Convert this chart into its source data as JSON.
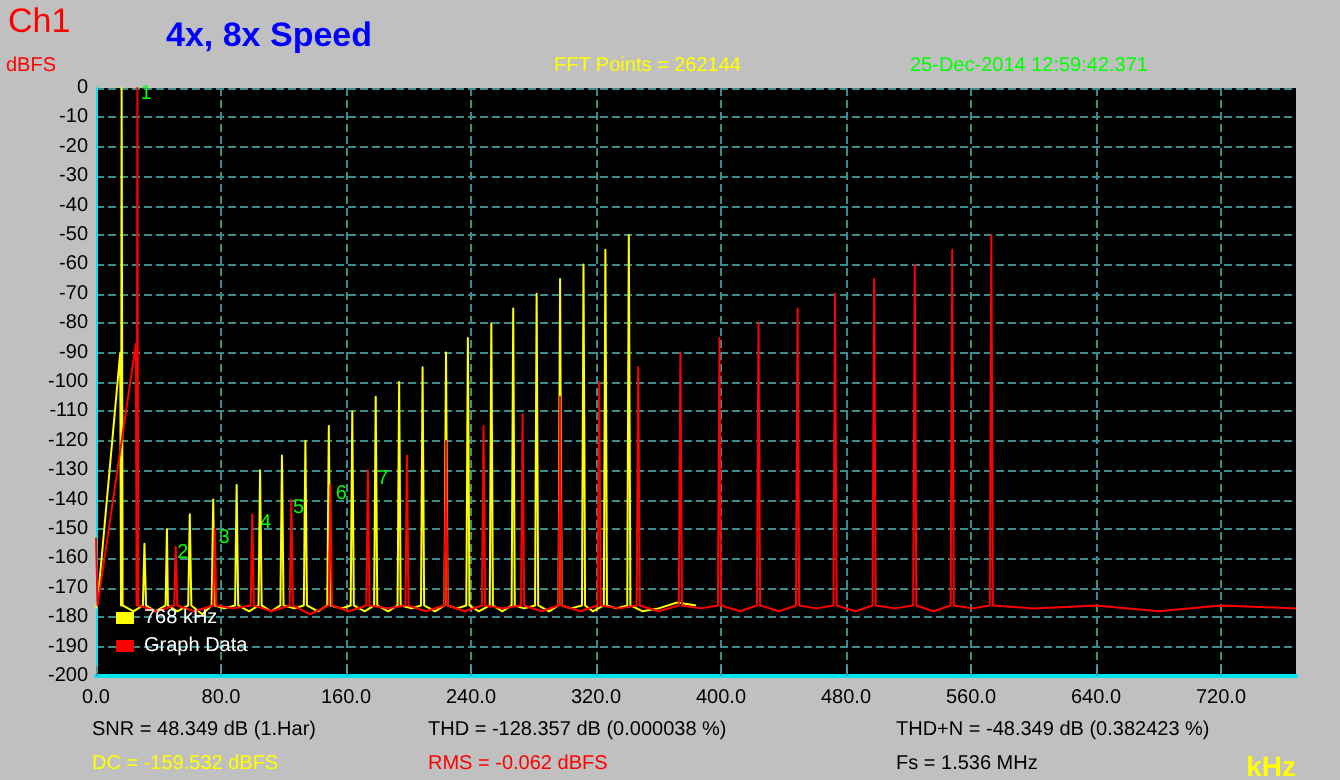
{
  "chart_data": {
    "type": "line",
    "title": "4x, 8x Speed",
    "ylabel": "dBFS",
    "xlabel": "kHz",
    "annotations": [
      "Ch1",
      "FFT Points = 262144",
      "25-Dec-2014 12:59:42.371",
      "SNR = 48.349 dB (1.Har)",
      "THD = -128.357 dB (0.000038 %)",
      "THD+N = -48.349 dB (0.382423 %)",
      "DC = -159.532 dBFS",
      "RMS = -0.062 dBFS",
      "Fs = 1.536 MHz",
      {
        "text": "1",
        "x": 32,
        "y": -2
      },
      {
        "text": "2",
        "x": 55.5,
        "y": -158
      },
      {
        "text": "3",
        "x": 82,
        "y": -153
      },
      {
        "text": "4",
        "x": 108.5,
        "y": -148
      },
      {
        "text": "5",
        "x": 129.6,
        "y": -143
      },
      {
        "text": "6",
        "x": 157,
        "y": -138
      },
      {
        "text": "7",
        "x": 183.5,
        "y": -133
      }
    ],
    "series": [
      {
        "name": "768 kHz",
        "color": "#ffff00",
        "x": [
          0,
          1,
          15.5,
          16,
          16.4,
          17,
          24,
          30,
          31,
          32,
          38,
          44.5,
          45.4,
          46,
          52,
          59,
          60,
          61,
          68,
          74,
          75,
          76,
          82,
          89,
          90,
          91,
          98,
          104,
          105,
          106,
          112,
          118,
          119,
          120,
          127,
          133,
          134,
          135,
          142,
          148,
          149,
          150,
          157,
          163,
          164,
          165,
          172,
          178,
          179,
          180,
          187,
          193,
          194,
          195,
          202,
          208,
          209,
          210,
          217,
          223,
          224,
          225,
          231,
          237,
          238,
          239,
          245,
          252,
          253,
          254,
          260,
          266,
          267,
          268,
          274,
          281,
          282,
          283,
          290,
          296,
          297,
          298,
          304,
          311,
          312,
          313,
          318,
          325,
          326,
          327,
          333,
          340,
          341,
          342,
          350,
          360,
          372,
          384
        ],
        "values": [
          -177,
          -175,
          -90,
          -176,
          0,
          -176,
          -178,
          -176,
          -155,
          -176,
          -178,
          -176,
          -150,
          -176,
          -178,
          -176,
          -145,
          -176,
          -179,
          -176,
          -140,
          -176,
          -177,
          -176,
          -135,
          -176,
          -178,
          -176,
          -130,
          -176,
          -178,
          -176,
          -125,
          -176,
          -177,
          -176,
          -120,
          -176,
          -178,
          -176,
          -115,
          -176,
          -177,
          -176,
          -110,
          -176,
          -178,
          -176,
          -105,
          -176,
          -178,
          -176,
          -100,
          -176,
          -177,
          -176,
          -95,
          -176,
          -178,
          -176,
          -90,
          -176,
          -177,
          -176,
          -85,
          -176,
          -178,
          -176,
          -80,
          -176,
          -178,
          -176,
          -75,
          -176,
          -177,
          -176,
          -70,
          -176,
          -178,
          -176,
          -65,
          -176,
          -177,
          -176,
          -60,
          -176,
          -178,
          -176,
          -55,
          -176,
          -177,
          -176,
          -50,
          -176,
          -178,
          -177,
          -175,
          -176
        ]
      },
      {
        "name": "Graph Data",
        "color": "#ff0000",
        "x": [
          0,
          1,
          25.5,
          26,
          26.5,
          27,
          39,
          50,
          51,
          52,
          63,
          75,
          76,
          77,
          88,
          99,
          100,
          101,
          112,
          124,
          125,
          126,
          137,
          149,
          150,
          151,
          162,
          173,
          174,
          175,
          187,
          198,
          199,
          200,
          211,
          223,
          224,
          225,
          236,
          247,
          248,
          249,
          260,
          272,
          273,
          274,
          285,
          296,
          297,
          298,
          310,
          321,
          322,
          323,
          335,
          346,
          347,
          348,
          360,
          373,
          374,
          375,
          387,
          398,
          399,
          400,
          412,
          423,
          424,
          425,
          437,
          448,
          449,
          450,
          461,
          472,
          473,
          474,
          486,
          497,
          498,
          499,
          511,
          523,
          524,
          525,
          536,
          547,
          548,
          549,
          561,
          572,
          573,
          574,
          600,
          640,
          680,
          720,
          768
        ],
        "values": [
          -153,
          -176,
          -87,
          -176,
          0,
          -176,
          -178,
          -176,
          -156,
          -176,
          -178,
          -176,
          -150,
          -176,
          -177,
          -176,
          -145,
          -176,
          -178,
          -176,
          -140,
          -176,
          -179,
          -176,
          -135,
          -176,
          -178,
          -176,
          -130,
          -176,
          -177,
          -176,
          -125,
          -176,
          -178,
          -176,
          -120,
          -176,
          -178,
          -176,
          -115,
          -176,
          -177,
          -176,
          -111,
          -176,
          -178,
          -176,
          -105,
          -176,
          -178,
          -176,
          -100,
          -176,
          -177,
          -176,
          -95,
          -176,
          -178,
          -176,
          -90,
          -176,
          -177,
          -176,
          -85,
          -176,
          -178,
          -176,
          -80,
          -176,
          -178,
          -176,
          -75,
          -176,
          -177,
          -176,
          -70,
          -176,
          -178,
          -176,
          -65,
          -176,
          -177,
          -176,
          -60,
          -176,
          -178,
          -176,
          -55,
          -176,
          -177,
          -176,
          -50,
          -176,
          -177,
          -176,
          -178,
          -176,
          -177
        ]
      }
    ],
    "xlim": [
      0,
      768
    ],
    "xticks": [
      {
        "value": 0,
        "label": "0.0"
      },
      {
        "value": 80,
        "label": "80.0"
      },
      {
        "value": 160,
        "label": "160.0"
      },
      {
        "value": 240,
        "label": "240.0"
      },
      {
        "value": 320,
        "label": "320.0"
      },
      {
        "value": 400,
        "label": "400.0"
      },
      {
        "value": 480,
        "label": "480.0"
      },
      {
        "value": 560,
        "label": "560.0"
      },
      {
        "value": 640,
        "label": "640.0"
      },
      {
        "value": 720,
        "label": "720.0"
      }
    ],
    "ylim": [
      -200,
      0
    ],
    "yticks": [
      0,
      -10,
      -20,
      -30,
      -40,
      -50,
      -60,
      -70,
      -80,
      -90,
      -100,
      -110,
      -120,
      -130,
      -140,
      -150,
      -160,
      -170,
      -180,
      -190,
      -200
    ],
    "grid": true,
    "legend": "bottom left",
    "line_style": "solid",
    "marker": "none"
  }
}
